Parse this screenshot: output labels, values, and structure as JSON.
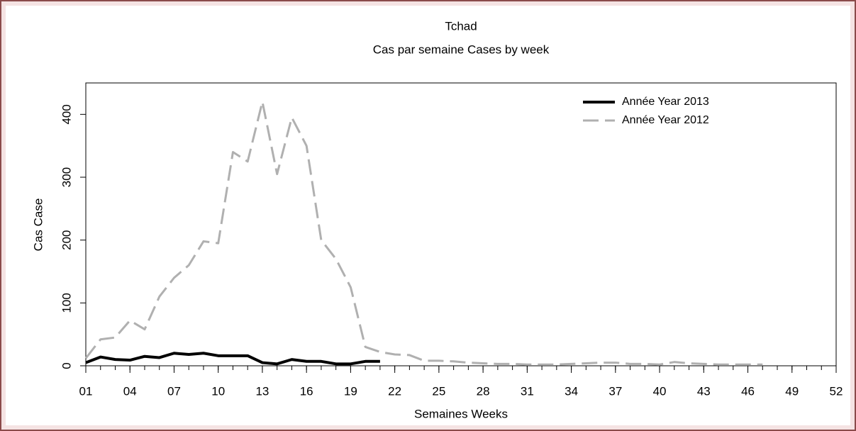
{
  "chart_data": {
    "type": "line",
    "title": "Tchad",
    "subtitle": "Cas par semaine Cases by week",
    "x_label": "Semaines Weeks",
    "y_label": "Cas Case",
    "x": [
      1,
      2,
      3,
      4,
      5,
      6,
      7,
      8,
      9,
      10,
      11,
      12,
      13,
      14,
      15,
      16,
      17,
      18,
      19,
      20,
      21,
      22,
      23,
      24,
      25,
      26,
      27,
      28,
      29,
      30,
      31,
      32,
      33,
      34,
      35,
      36,
      37,
      38,
      39,
      40,
      41,
      42,
      43,
      44,
      45,
      46,
      47,
      48,
      49,
      50,
      51,
      52
    ],
    "series": [
      {
        "name": "Année Year 2013",
        "color": "#000000",
        "dash": false,
        "values": [
          5,
          14,
          10,
          9,
          15,
          13,
          20,
          18,
          20,
          16,
          16,
          16,
          5,
          3,
          10,
          7,
          7,
          3,
          3,
          7,
          7,
          null,
          null,
          null,
          null,
          null,
          null,
          null,
          null,
          null,
          null,
          null,
          null,
          null,
          null,
          null,
          null,
          null,
          null,
          null,
          null,
          null,
          null,
          null,
          null,
          null,
          null,
          null,
          null,
          null,
          null,
          null
        ]
      },
      {
        "name": "Année Year 2012",
        "color": "#b0b0b0",
        "dash": true,
        "values": [
          12,
          42,
          45,
          72,
          58,
          110,
          140,
          160,
          198,
          195,
          340,
          325,
          420,
          305,
          395,
          350,
          200,
          170,
          125,
          30,
          22,
          18,
          17,
          8,
          8,
          7,
          5,
          4,
          3,
          3,
          2,
          2,
          2,
          3,
          4,
          5,
          5,
          3,
          3,
          2,
          6,
          4,
          3,
          2,
          2,
          2,
          2,
          null,
          null,
          null,
          null,
          null
        ]
      }
    ],
    "xlim": [
      1,
      52
    ],
    "xticks": [
      {
        "value": 1,
        "label": "01"
      },
      {
        "value": 4,
        "label": "04"
      },
      {
        "value": 7,
        "label": "07"
      },
      {
        "value": 10,
        "label": "10"
      },
      {
        "value": 13,
        "label": "13"
      },
      {
        "value": 16,
        "label": "16"
      },
      {
        "value": 19,
        "label": "19"
      },
      {
        "value": 22,
        "label": "22"
      },
      {
        "value": 25,
        "label": "25"
      },
      {
        "value": 28,
        "label": "28"
      },
      {
        "value": 31,
        "label": "31"
      },
      {
        "value": 34,
        "label": "34"
      },
      {
        "value": 37,
        "label": "37"
      },
      {
        "value": 40,
        "label": "40"
      },
      {
        "value": 43,
        "label": "43"
      },
      {
        "value": 46,
        "label": "46"
      },
      {
        "value": 49,
        "label": "49"
      },
      {
        "value": 52,
        "label": "52"
      }
    ],
    "xminor": [
      1,
      2,
      3,
      4,
      5,
      6,
      7,
      8,
      9,
      10,
      11,
      12,
      13,
      14,
      15,
      16,
      17,
      18,
      19,
      20,
      21,
      22,
      23,
      24,
      25,
      26,
      27,
      28,
      29,
      30,
      31,
      32,
      33,
      34,
      35,
      36,
      37,
      38,
      39,
      40,
      41,
      42,
      43,
      44,
      45,
      46,
      47,
      48,
      49,
      50,
      51,
      52
    ],
    "ylim": [
      0,
      450
    ],
    "yticks": [
      0,
      100,
      200,
      300,
      400
    ],
    "legend": "upper right"
  }
}
